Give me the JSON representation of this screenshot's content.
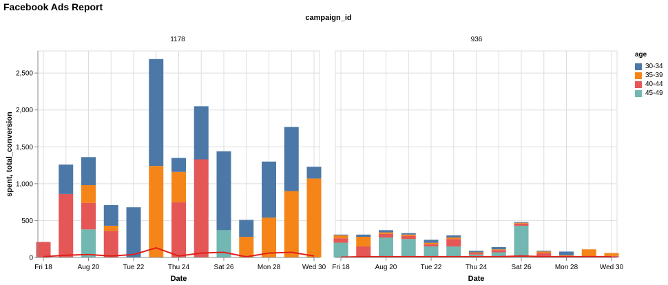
{
  "report": {
    "title": "Facebook Ads Report",
    "facet_title": "campaign_id"
  },
  "chart_data": {
    "type": "bar",
    "stacked": true,
    "facet_field": "campaign_id",
    "categories": [
      "Aug 18",
      "Aug 19",
      "Aug 20",
      "Aug 21",
      "Aug 22",
      "Aug 23",
      "Aug 24",
      "Aug 25",
      "Aug 26",
      "Aug 27",
      "Aug 28",
      "Aug 29",
      "Aug 30"
    ],
    "x_tick_labels": [
      "Fri 18",
      "Aug 20",
      "Tue 22",
      "Thu 24",
      "Sat 26",
      "Mon 28",
      "Wed 30"
    ],
    "x_tick_indices": [
      0,
      2,
      4,
      6,
      8,
      10,
      12
    ],
    "xlabel": "Date",
    "ylabel": "spent, total_conversion",
    "ylim": [
      0,
      2800
    ],
    "y_ticks": [
      0,
      500,
      1000,
      1500,
      2000,
      2500
    ],
    "y_tick_labels": [
      "0",
      "500",
      "1,000",
      "1,500",
      "2,000",
      "2,500"
    ],
    "grid": true,
    "legend": {
      "title": "age",
      "position": "right",
      "entries": [
        "30-34",
        "35-39",
        "40-44",
        "45-49"
      ],
      "colors": [
        "#4c78a8",
        "#f58518",
        "#e45756",
        "#72b7b2"
      ]
    },
    "line_color": "#e0201b",
    "panels": [
      {
        "title": "1178",
        "series": [
          {
            "name": "45-49",
            "values": [
              0,
              0,
              380,
              0,
              0,
              0,
              0,
              0,
              370,
              0,
              0,
              0,
              0
            ]
          },
          {
            "name": "40-44",
            "values": [
              210,
              860,
              360,
              360,
              0,
              0,
              750,
              1330,
              0,
              0,
              0,
              0,
              0
            ]
          },
          {
            "name": "35-39",
            "values": [
              0,
              0,
              240,
              70,
              0,
              1240,
              410,
              0,
              0,
              280,
              540,
              900,
              1070
            ]
          },
          {
            "name": "30-34",
            "values": [
              0,
              400,
              380,
              280,
              680,
              1450,
              190,
              720,
              1070,
              230,
              760,
              870,
              160
            ]
          }
        ],
        "line_values": [
          10,
          30,
          40,
          20,
          40,
          130,
          20,
          60,
          70,
          10,
          60,
          70,
          20
        ]
      },
      {
        "title": "936",
        "series": [
          {
            "name": "45-49",
            "values": [
              200,
              0,
              270,
              250,
              150,
              150,
              40,
              70,
              430,
              20,
              0,
              0,
              0
            ]
          },
          {
            "name": "40-44",
            "values": [
              60,
              150,
              50,
              40,
              30,
              100,
              20,
              30,
              30,
              40,
              20,
              0,
              20
            ]
          },
          {
            "name": "35-39",
            "values": [
              40,
              130,
              20,
              20,
              20,
              20,
              10,
              10,
              10,
              20,
              10,
              110,
              40
            ]
          },
          {
            "name": "30-34",
            "values": [
              10,
              30,
              30,
              20,
              40,
              30,
              20,
              30,
              10,
              10,
              50,
              0,
              0
            ]
          }
        ],
        "line_values": [
          5,
          10,
          10,
          10,
          10,
          10,
          10,
          10,
          20,
          10,
          10,
          10,
          10
        ]
      }
    ]
  }
}
